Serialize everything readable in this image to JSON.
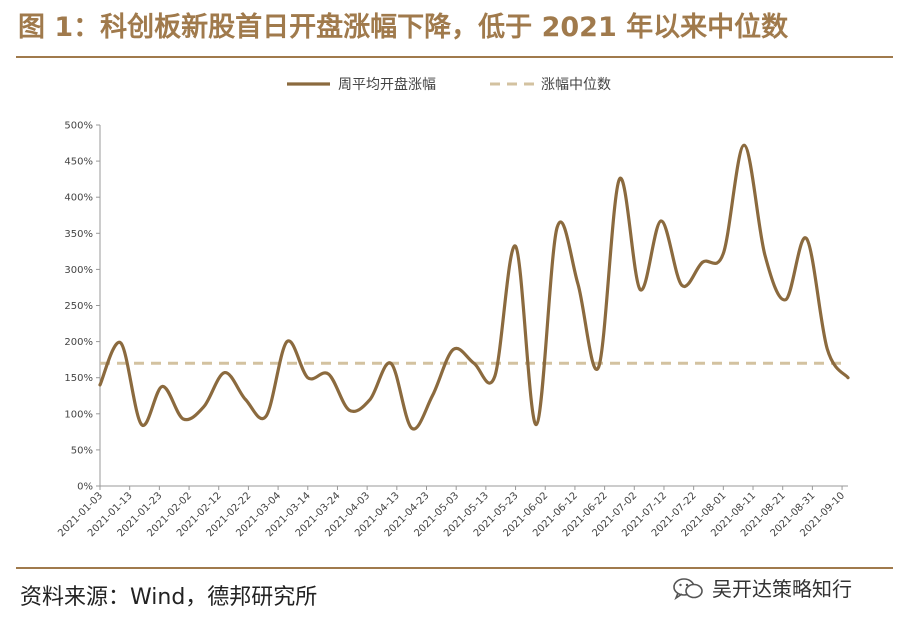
{
  "header": {
    "title": "图 1：科创板新股首日开盘涨幅下降，低于 2021 年以来中位数"
  },
  "footer": {
    "source": "资料来源：Wind，德邦研究所",
    "watermark": "吴开达策略知行",
    "watermark_icon": "wechat-icon"
  },
  "colors": {
    "brand": "#a07a4c",
    "series_line": "#8b6a3e",
    "median_line": "#d3c2a0"
  },
  "chart_data": {
    "type": "line",
    "title": "",
    "xlabel": "",
    "ylabel": "",
    "ylim": [
      0,
      500
    ],
    "y_ticks": [
      0,
      50,
      100,
      150,
      200,
      250,
      300,
      350,
      400,
      450,
      500
    ],
    "y_tick_labels": [
      "0%",
      "50%",
      "100%",
      "150%",
      "200%",
      "250%",
      "300%",
      "350%",
      "400%",
      "450%",
      "500%"
    ],
    "x_tick_labels": [
      "2021-01-03",
      "2021-01-13",
      "2021-01-23",
      "2021-02-02",
      "2021-02-12",
      "2021-02-22",
      "2021-03-04",
      "2021-03-14",
      "2021-03-24",
      "2021-04-03",
      "2021-04-13",
      "2021-04-23",
      "2021-05-03",
      "2021-05-13",
      "2021-05-23",
      "2021-06-02",
      "2021-06-12",
      "2021-06-22",
      "2021-07-02",
      "2021-07-12",
      "2021-07-22",
      "2021-08-01",
      "2021-08-11",
      "2021-08-21",
      "2021-08-31",
      "2021-09-10"
    ],
    "legend_position": "top-center",
    "grid": false,
    "series": [
      {
        "name": "周平均开盘涨幅",
        "style": "solid",
        "x": [
          "2021-01-03",
          "2021-01-10",
          "2021-01-17",
          "2021-01-24",
          "2021-01-31",
          "2021-02-07",
          "2021-02-14",
          "2021-02-21",
          "2021-02-28",
          "2021-03-07",
          "2021-03-14",
          "2021-03-21",
          "2021-03-28",
          "2021-04-04",
          "2021-04-11",
          "2021-04-18",
          "2021-04-25",
          "2021-05-02",
          "2021-05-09",
          "2021-05-16",
          "2021-05-23",
          "2021-05-30",
          "2021-06-06",
          "2021-06-13",
          "2021-06-20",
          "2021-06-27",
          "2021-07-04",
          "2021-07-11",
          "2021-07-18",
          "2021-07-25",
          "2021-08-01",
          "2021-08-08",
          "2021-08-15",
          "2021-08-22",
          "2021-08-29",
          "2021-09-05",
          "2021-09-12"
        ],
        "values": [
          140,
          198,
          85,
          138,
          93,
          110,
          157,
          120,
          97,
          200,
          150,
          155,
          105,
          120,
          170,
          80,
          125,
          189,
          170,
          152,
          332,
          85,
          358,
          280,
          165,
          425,
          272,
          367,
          278,
          310,
          322,
          472,
          320,
          258,
          343,
          190,
          150
        ]
      },
      {
        "name": "涨幅中位数",
        "style": "dashed",
        "x": [
          "2021-01-03",
          "2021-09-12"
        ],
        "values": [
          170,
          170
        ]
      }
    ]
  }
}
